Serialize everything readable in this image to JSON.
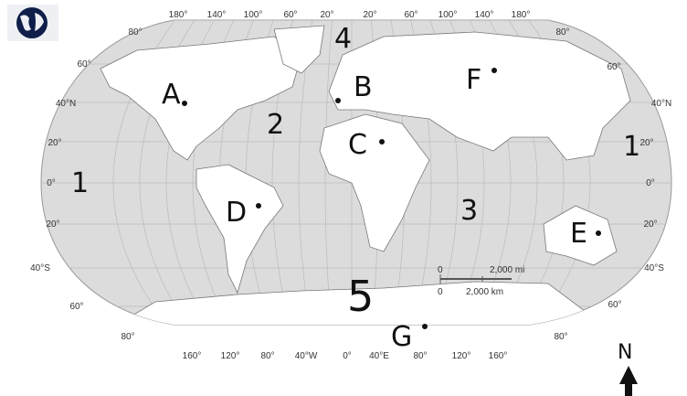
{
  "map": {
    "colors": {
      "ocean": "#dcdcdc",
      "land": "#ffffff",
      "ink": "#111111",
      "globe_icon": "#0f1f4a"
    },
    "icons": {
      "corner": "globe-icon",
      "north": "north-arrow-icon"
    },
    "top_longitudes": [
      "180°",
      "140°",
      "100°",
      "60°",
      "20°",
      "20°",
      "60°",
      "100°",
      "140°",
      "180°"
    ],
    "bottom_longitudes": [
      "160°",
      "120°",
      "80°",
      "40°W",
      "0°",
      "40°E",
      "80°",
      "120°",
      "160°"
    ],
    "left_latitudes": [
      "80°",
      "60°",
      "40°N",
      "20°",
      "0°",
      "20°",
      "40°S",
      "60°",
      "80°"
    ],
    "right_latitudes": [
      "80°",
      "60°",
      "40°N",
      "20°",
      "0°",
      "20°",
      "40°S",
      "60°",
      "80°"
    ],
    "scale": {
      "zero_top": "0",
      "miles": "2,000 mi",
      "zero_bottom": "0",
      "km": "2,000 km"
    },
    "north_label": "N",
    "point_labels": [
      "A",
      "B",
      "C",
      "D",
      "E",
      "F",
      "G"
    ],
    "ocean_labels": [
      "1",
      "1",
      "2",
      "3",
      "4",
      "5"
    ]
  }
}
